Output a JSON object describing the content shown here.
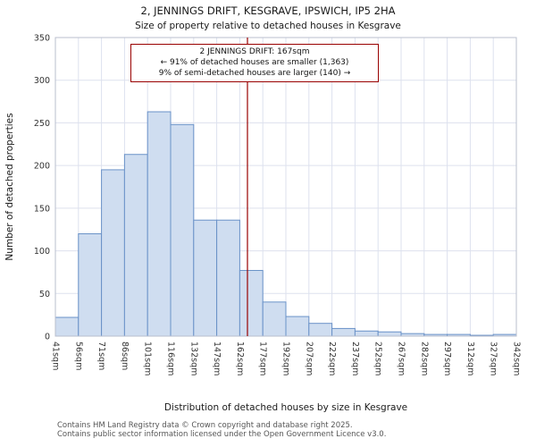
{
  "chart_data": {
    "type": "bar",
    "title": "2, JENNINGS DRIFT, KESGRAVE, IPSWICH, IP5 2HA",
    "subtitle": "Size of property relative to detached houses in Kesgrave",
    "xlabel": "Distribution of detached houses by size in Kesgrave",
    "ylabel": "Number of detached properties",
    "ylim": [
      0,
      350
    ],
    "ytick_step": 50,
    "grid": true,
    "legend": "none",
    "bin_labels": [
      "41sqm",
      "56sqm",
      "71sqm",
      "86sqm",
      "101sqm",
      "116sqm",
      "132sqm",
      "147sqm",
      "162sqm",
      "177sqm",
      "192sqm",
      "207sqm",
      "222sqm",
      "237sqm",
      "252sqm",
      "267sqm",
      "282sqm",
      "297sqm",
      "312sqm",
      "327sqm",
      "342sqm"
    ],
    "bin_edges_sqm": [
      41,
      56,
      71,
      86,
      101,
      116,
      132,
      147,
      162,
      177,
      192,
      207,
      222,
      237,
      252,
      267,
      282,
      297,
      312,
      327,
      342
    ],
    "values": [
      22,
      120,
      195,
      213,
      263,
      248,
      136,
      136,
      77,
      40,
      23,
      15,
      9,
      6,
      5,
      3,
      2,
      2,
      1,
      2
    ],
    "marker": {
      "label": "2 JENNINGS DRIFT",
      "value_sqm": 167,
      "color": "#990000"
    },
    "colors": {
      "bar_fill": "#cfddf0",
      "bar_stroke": "#6a92c8",
      "grid_color": "#dde1ee",
      "frame_color": "#b9bfce",
      "plot_bg": "#ffffff",
      "tick_text": "#333333"
    }
  },
  "annotation": {
    "line1": "2 JENNINGS DRIFT: 167sqm",
    "line2": "← 91% of detached houses are smaller (1,363)",
    "line3": "9% of semi-detached houses are larger (140) →"
  },
  "footer": {
    "line1": "Contains HM Land Registry data © Crown copyright and database right 2025.",
    "line2": "Contains public sector information licensed under the Open Government Licence v3.0."
  }
}
